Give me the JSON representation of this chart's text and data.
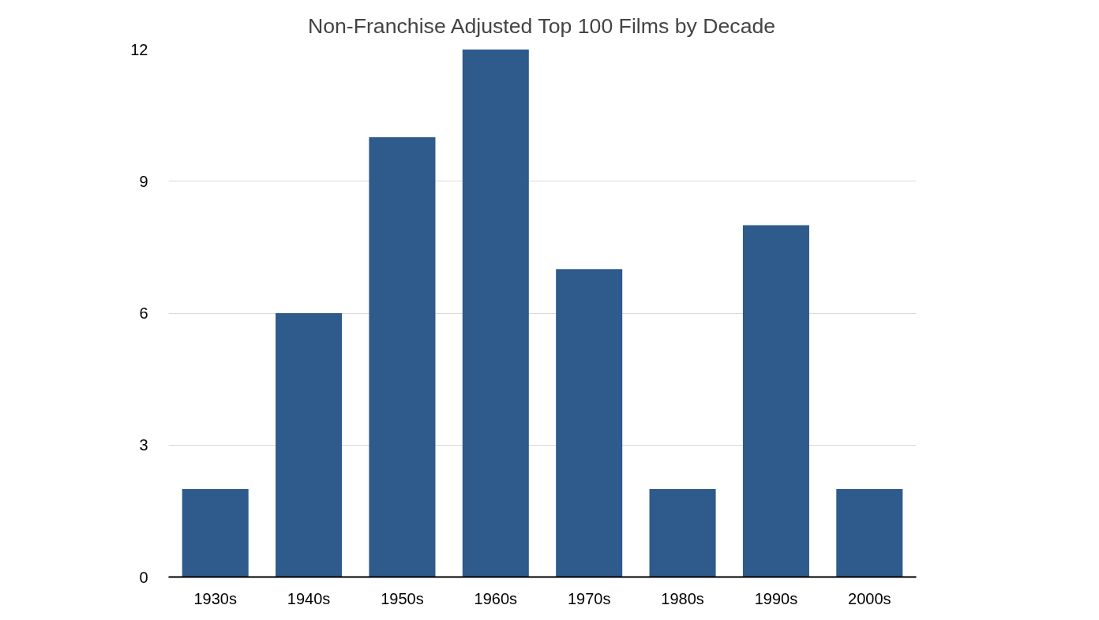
{
  "chart_data": {
    "type": "bar",
    "title": "Non-Franchise Adjusted Top 100 Films by Decade",
    "categories": [
      "1930s",
      "1940s",
      "1950s",
      "1960s",
      "1970s",
      "1980s",
      "1990s",
      "2000s"
    ],
    "values": [
      2,
      6,
      10,
      12,
      7,
      2,
      8,
      2
    ],
    "color": "#2e5a8c",
    "ylim": [
      0,
      12
    ],
    "yticks": [
      0,
      3,
      6,
      9,
      12
    ],
    "grid": "y"
  }
}
